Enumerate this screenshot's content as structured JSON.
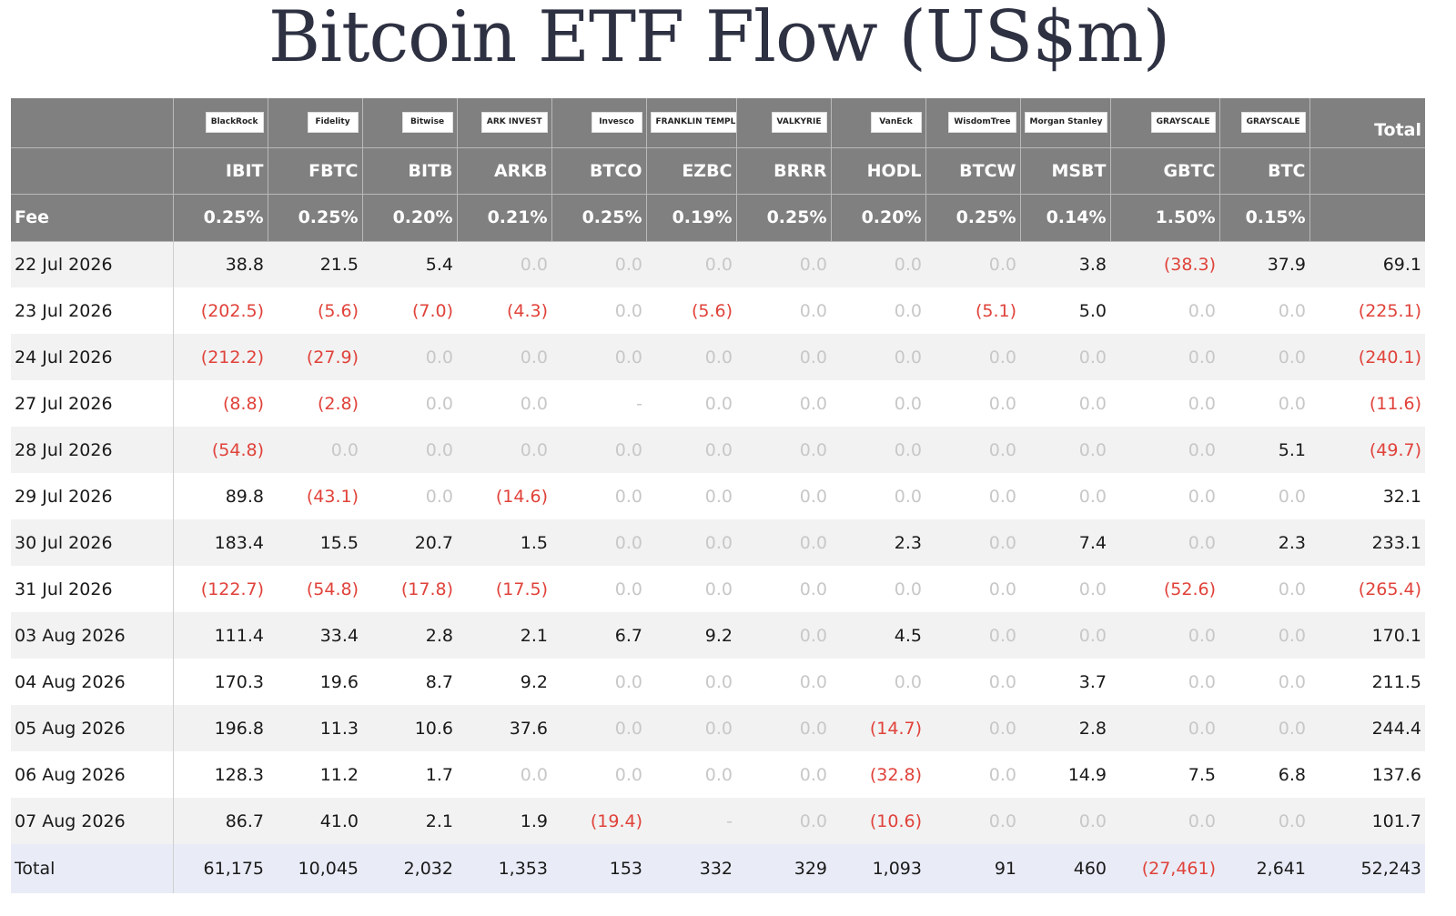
{
  "title": "Bitcoin ETF Flow (US$m)",
  "colors": {
    "header_bg": "#808080",
    "negative": "#e0423a",
    "zero": "#c8c8c8",
    "total_row_bg": "#e9ecf7"
  },
  "chart_data": {
    "type": "table",
    "title": "Bitcoin ETF Flow (US$m)",
    "issuers": [
      "BlackRock",
      "Fidelity",
      "Bitwise",
      "ARK INVEST",
      "Invesco",
      "FRANKLIN TEMPLETON",
      "VALKYRIE",
      "VanEck",
      "WisdomTree",
      "Morgan Stanley",
      "GRAYSCALE",
      "GRAYSCALE"
    ],
    "total_header": "Total",
    "tickers": [
      "IBIT",
      "FBTC",
      "BITB",
      "ARKB",
      "BTCO",
      "EZBC",
      "BRRR",
      "HODL",
      "BTCW",
      "MSBT",
      "GBTC",
      "BTC"
    ],
    "fee_label": "Fee",
    "fees": [
      "0.25%",
      "0.25%",
      "0.20%",
      "0.21%",
      "0.25%",
      "0.19%",
      "0.25%",
      "0.20%",
      "0.25%",
      "0.14%",
      "1.50%",
      "0.15%"
    ],
    "rows": [
      {
        "date": "22 Jul 2026",
        "values": [
          "38.8",
          "21.5",
          "5.4",
          "0.0",
          "0.0",
          "0.0",
          "0.0",
          "0.0",
          "0.0",
          "3.8",
          "(38.3)",
          "37.9"
        ],
        "total": "69.1"
      },
      {
        "date": "23 Jul 2026",
        "values": [
          "(202.5)",
          "(5.6)",
          "(7.0)",
          "(4.3)",
          "0.0",
          "(5.6)",
          "0.0",
          "0.0",
          "(5.1)",
          "5.0",
          "0.0",
          "0.0"
        ],
        "total": "(225.1)"
      },
      {
        "date": "24 Jul 2026",
        "values": [
          "(212.2)",
          "(27.9)",
          "0.0",
          "0.0",
          "0.0",
          "0.0",
          "0.0",
          "0.0",
          "0.0",
          "0.0",
          "0.0",
          "0.0"
        ],
        "total": "(240.1)"
      },
      {
        "date": "27 Jul 2026",
        "values": [
          "(8.8)",
          "(2.8)",
          "0.0",
          "0.0",
          "-",
          "0.0",
          "0.0",
          "0.0",
          "0.0",
          "0.0",
          "0.0",
          "0.0"
        ],
        "total": "(11.6)"
      },
      {
        "date": "28 Jul 2026",
        "values": [
          "(54.8)",
          "0.0",
          "0.0",
          "0.0",
          "0.0",
          "0.0",
          "0.0",
          "0.0",
          "0.0",
          "0.0",
          "0.0",
          "5.1"
        ],
        "total": "(49.7)"
      },
      {
        "date": "29 Jul 2026",
        "values": [
          "89.8",
          "(43.1)",
          "0.0",
          "(14.6)",
          "0.0",
          "0.0",
          "0.0",
          "0.0",
          "0.0",
          "0.0",
          "0.0",
          "0.0"
        ],
        "total": "32.1"
      },
      {
        "date": "30 Jul 2026",
        "values": [
          "183.4",
          "15.5",
          "20.7",
          "1.5",
          "0.0",
          "0.0",
          "0.0",
          "2.3",
          "0.0",
          "7.4",
          "0.0",
          "2.3"
        ],
        "total": "233.1"
      },
      {
        "date": "31 Jul 2026",
        "values": [
          "(122.7)",
          "(54.8)",
          "(17.8)",
          "(17.5)",
          "0.0",
          "0.0",
          "0.0",
          "0.0",
          "0.0",
          "0.0",
          "(52.6)",
          "0.0"
        ],
        "total": "(265.4)"
      },
      {
        "date": "03 Aug 2026",
        "values": [
          "111.4",
          "33.4",
          "2.8",
          "2.1",
          "6.7",
          "9.2",
          "0.0",
          "4.5",
          "0.0",
          "0.0",
          "0.0",
          "0.0"
        ],
        "total": "170.1"
      },
      {
        "date": "04 Aug 2026",
        "values": [
          "170.3",
          "19.6",
          "8.7",
          "9.2",
          "0.0",
          "0.0",
          "0.0",
          "0.0",
          "0.0",
          "3.7",
          "0.0",
          "0.0"
        ],
        "total": "211.5"
      },
      {
        "date": "05 Aug 2026",
        "values": [
          "196.8",
          "11.3",
          "10.6",
          "37.6",
          "0.0",
          "0.0",
          "0.0",
          "(14.7)",
          "0.0",
          "2.8",
          "0.0",
          "0.0"
        ],
        "total": "244.4"
      },
      {
        "date": "06 Aug 2026",
        "values": [
          "128.3",
          "11.2",
          "1.7",
          "0.0",
          "0.0",
          "0.0",
          "0.0",
          "(32.8)",
          "0.0",
          "14.9",
          "7.5",
          "6.8"
        ],
        "total": "137.6"
      },
      {
        "date": "07 Aug 2026",
        "values": [
          "86.7",
          "41.0",
          "2.1",
          "1.9",
          "(19.4)",
          "-",
          "0.0",
          "(10.6)",
          "0.0",
          "0.0",
          "0.0",
          "0.0"
        ],
        "total": "101.7"
      }
    ],
    "totals_label": "Total",
    "totals": [
      "61,175",
      "10,045",
      "2,032",
      "1,353",
      "153",
      "332",
      "329",
      "1,093",
      "91",
      "460",
      "(27,461)",
      "2,641"
    ],
    "grand_total": "52,243"
  }
}
